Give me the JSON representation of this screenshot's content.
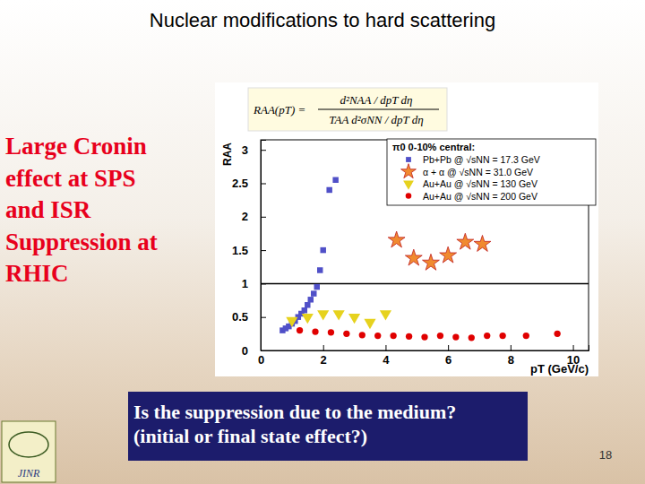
{
  "slide": {
    "title": "Nuclear modifications to hard scattering",
    "side_text": [
      "Large Cronin",
      "effect at SPS",
      "and ISR",
      "Suppression at",
      "RHIC"
    ],
    "question": [
      "Is the suppression due to the medium?",
      "(initial or final state effect?)"
    ],
    "page_number": "18",
    "logo_text": "JINR",
    "formula": {
      "left": "RAA(pT) =",
      "numerator": "d²NAA / dpT dη",
      "denominator": "TAA d²σNN / dpT dη"
    }
  },
  "chart_data": {
    "type": "scatter",
    "x_label": "pT (GeV/c)",
    "y_label": "RAA",
    "legend_title": "π0 0-10% central:",
    "legend": "upper right",
    "xlim": [
      0,
      10.5
    ],
    "ylim": [
      0,
      3.15
    ],
    "xticks": [
      0,
      2,
      4,
      6,
      8,
      10
    ],
    "yticks": [
      0,
      0.5,
      1,
      1.5,
      2,
      2.5,
      3
    ],
    "reference_lines": [
      1
    ],
    "series": [
      {
        "name": "Pb+Pb @ √sNN = 17.3 GeV",
        "color": "#5050c8",
        "marker": "square",
        "x": [
          0.7,
          0.8,
          0.9,
          1.0,
          1.1,
          1.2,
          1.3,
          1.4,
          1.5,
          1.6,
          1.7,
          1.8,
          1.9,
          2.0,
          2.2,
          2.4
        ],
        "values": [
          0.3,
          0.33,
          0.36,
          0.4,
          0.44,
          0.5,
          0.55,
          0.6,
          0.68,
          0.76,
          0.85,
          0.95,
          1.2,
          1.5,
          2.4,
          2.55
        ]
      },
      {
        "name": "α + α @ √sNN = 31.0 GeV",
        "color": "#f08a30",
        "marker": "star",
        "x": [
          4.35,
          4.9,
          5.45,
          6.0,
          6.55,
          7.1
        ],
        "values": [
          1.65,
          1.38,
          1.31,
          1.42,
          1.62,
          1.59
        ]
      },
      {
        "name": "Au+Au @ √sNN = 130 GeV",
        "color": "#e6d21e",
        "marker": "triangle-down",
        "x": [
          1.0,
          1.5,
          2.0,
          2.5,
          3.0,
          3.5,
          4.0
        ],
        "values": [
          0.45,
          0.5,
          0.55,
          0.55,
          0.5,
          0.42,
          0.55
        ]
      },
      {
        "name": "Au+Au @ √sNN = 200 GeV",
        "color": "#e00000",
        "marker": "circle",
        "x": [
          1.25,
          1.75,
          2.25,
          2.75,
          3.25,
          3.75,
          4.25,
          4.75,
          5.25,
          5.75,
          6.25,
          6.75,
          7.25,
          7.75,
          8.5,
          9.5
        ],
        "values": [
          0.3,
          0.28,
          0.27,
          0.25,
          0.23,
          0.22,
          0.22,
          0.21,
          0.2,
          0.22,
          0.2,
          0.19,
          0.22,
          0.22,
          0.22,
          0.25
        ]
      }
    ]
  }
}
